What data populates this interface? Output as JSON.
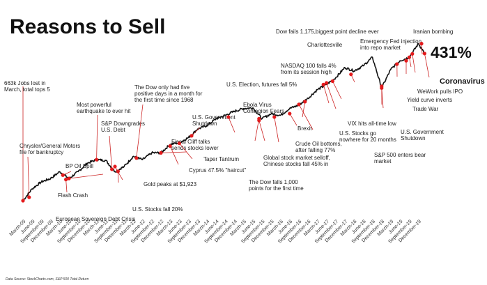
{
  "title": "Reasons to Sell",
  "total_return_label": "431%",
  "source": "Data Source: StockCharts.com, S&P 500 Total Return",
  "colors": {
    "line": "#111111",
    "event": "#e41a1c",
    "leader": "#cc2222"
  },
  "chart_data": {
    "type": "line",
    "title": "Reasons to Sell",
    "xlabel": "",
    "ylabel": "",
    "series": [
      {
        "x": [
          "2009-03",
          "2009-06",
          "2009-09",
          "2009-12",
          "2010-03",
          "2010-06",
          "2010-09",
          "2010-12",
          "2011-03",
          "2011-06",
          "2011-09",
          "2011-12",
          "2012-03",
          "2012-06",
          "2012-09",
          "2012-12",
          "2013-03",
          "2013-06",
          "2013-09",
          "2013-12",
          "2014-03",
          "2014-06",
          "2014-09",
          "2014-12",
          "2015-03",
          "2015-06",
          "2015-09",
          "2015-12",
          "2016-03",
          "2016-06",
          "2016-09",
          "2016-12",
          "2017-03",
          "2017-06",
          "2017-09",
          "2017-12",
          "2018-03",
          "2018-06",
          "2018-09",
          "2018-12",
          "2019-03",
          "2019-06",
          "2019-09",
          "2019-12",
          "2020-02"
        ],
        "values": [
          0,
          35,
          55,
          65,
          85,
          65,
          85,
          110,
          120,
          118,
          85,
          100,
          130,
          120,
          140,
          140,
          165,
          170,
          185,
          210,
          220,
          240,
          250,
          262,
          270,
          272,
          240,
          255,
          250,
          270,
          280,
          300,
          325,
          340,
          360,
          390,
          380,
          395,
          420,
          330,
          385,
          410,
          420,
          460,
          431
        ]
      }
    ],
    "x_tick_labels": [
      "March-09",
      "June-09",
      "September-09",
      "December-09",
      "March-10",
      "June-10",
      "September-10",
      "December-10",
      "March-11",
      "June-11",
      "September-11",
      "December-11",
      "March-12",
      "June-12",
      "September-12",
      "December-12",
      "March-13",
      "June-13",
      "September-13",
      "December-13",
      "March-14",
      "June-14",
      "September-14",
      "December-14",
      "March-15",
      "June-15",
      "September-15",
      "December-15",
      "March-16",
      "June-16",
      "September-16",
      "December-16",
      "March-17",
      "June-17",
      "September-17",
      "December-17",
      "March-18",
      "June-18",
      "September-18",
      "December-18",
      "March-19",
      "June-19",
      "September-19",
      "December-19"
    ],
    "annotations": [
      {
        "date": "2009-03",
        "value": 0,
        "lines": [
          "663k Jobs lost in",
          "March, total tops 5"
        ]
      },
      {
        "date": "2009-05",
        "value": 10,
        "lines": [
          "Chrysler/General Motors",
          "file for bankruptcy"
        ]
      },
      {
        "date": "2010-04",
        "value": 75,
        "lines": [
          "BP Oil Spill"
        ]
      },
      {
        "date": "2010-05",
        "value": 62,
        "lines": [
          "Flash Crash"
        ]
      },
      {
        "date": "2010-06",
        "value": 65,
        "lines": [
          "European Sovereign Debt Crisis"
        ]
      },
      {
        "date": "2011-03",
        "value": 120,
        "lines": [
          "Most powerful",
          "earthquake to ever hit"
        ]
      },
      {
        "date": "2011-08",
        "value": 92,
        "lines": [
          "S&P Downgrades",
          "U.S. Debt"
        ]
      },
      {
        "date": "2011-10",
        "value": 86,
        "lines": [
          "U.S. Stocks fall 20%"
        ]
      },
      {
        "date": "2011-09",
        "value": 100,
        "lines": [
          "Gold peaks at $1,923"
        ]
      },
      {
        "date": "2012-04",
        "value": 125,
        "lines": [
          "The Dow only had five",
          "positive days in a month for",
          "the first time since 1968"
        ]
      },
      {
        "date": "2012-12",
        "value": 140,
        "lines": [
          "Fiscal Cliff talks",
          "sends stocks lower"
        ]
      },
      {
        "date": "2013-03",
        "value": 160,
        "lines": [
          "Cyprus 47.5% \"haircut\""
        ]
      },
      {
        "date": "2013-06",
        "value": 168,
        "lines": [
          "Taper Tantrum"
        ]
      },
      {
        "date": "2013-10",
        "value": 190,
        "lines": [
          "U.S. Government",
          "Shutdown"
        ]
      },
      {
        "date": "2014-10",
        "value": 245,
        "lines": [
          "Ebola Virus",
          "Contagion Fears"
        ]
      },
      {
        "date": "2015-08",
        "value": 235,
        "lines": [
          "Global stock market selloff,",
          "Chinese stocks fall 45% in"
        ]
      },
      {
        "date": "2015-08",
        "value": 240,
        "lines": [
          "The Dow falls 1,000",
          "points for the first time"
        ]
      },
      {
        "date": "2016-01",
        "value": 245,
        "lines": [
          "Crude Oil bottoms,",
          "after falling 77%"
        ]
      },
      {
        "date": "2016-06",
        "value": 255,
        "lines": [
          "Brexit"
        ]
      },
      {
        "date": "2016-11",
        "value": 290,
        "lines": [
          "U.S. Election, futures fall 5%"
        ]
      },
      {
        "date": "2016-09",
        "value": 282,
        "lines": [
          "U.S. Stocks go",
          "nowhere for 20 months"
        ]
      },
      {
        "date": "2017-05",
        "value": 340,
        "lines": [
          "NASDAQ 100 falls 4%",
          "from its  session high"
        ]
      },
      {
        "date": "2017-06",
        "value": 345,
        "lines": [
          "VIX hits all-time low"
        ]
      },
      {
        "date": "2017-08",
        "value": 350,
        "lines": [
          "Charlottesville"
        ]
      },
      {
        "date": "2018-02",
        "value": 370,
        "lines": [
          "Dow fails 1,175,biggest point decline ever"
        ]
      },
      {
        "date": "2018-12",
        "value": 330,
        "lines": [
          "S&P 500 enters bear",
          "market"
        ]
      },
      {
        "date": "2018-12",
        "value": 335,
        "lines": [
          "U.S. Government",
          "Shutdown"
        ]
      },
      {
        "date": "2019-05",
        "value": 400,
        "lines": [
          "Trade War"
        ]
      },
      {
        "date": "2019-08",
        "value": 410,
        "lines": [
          "Yield curve inverts"
        ]
      },
      {
        "date": "2019-09",
        "value": 420,
        "lines": [
          "Emergency Fed injection",
          "into repo market"
        ]
      },
      {
        "date": "2019-10",
        "value": 430,
        "lines": [
          "WeWork pulls IPO"
        ]
      },
      {
        "date": "2020-01",
        "value": 460,
        "lines": [
          "Iranian bombing"
        ]
      },
      {
        "date": "2020-02",
        "value": 431,
        "lines": [
          "Coronavirus"
        ]
      }
    ]
  }
}
